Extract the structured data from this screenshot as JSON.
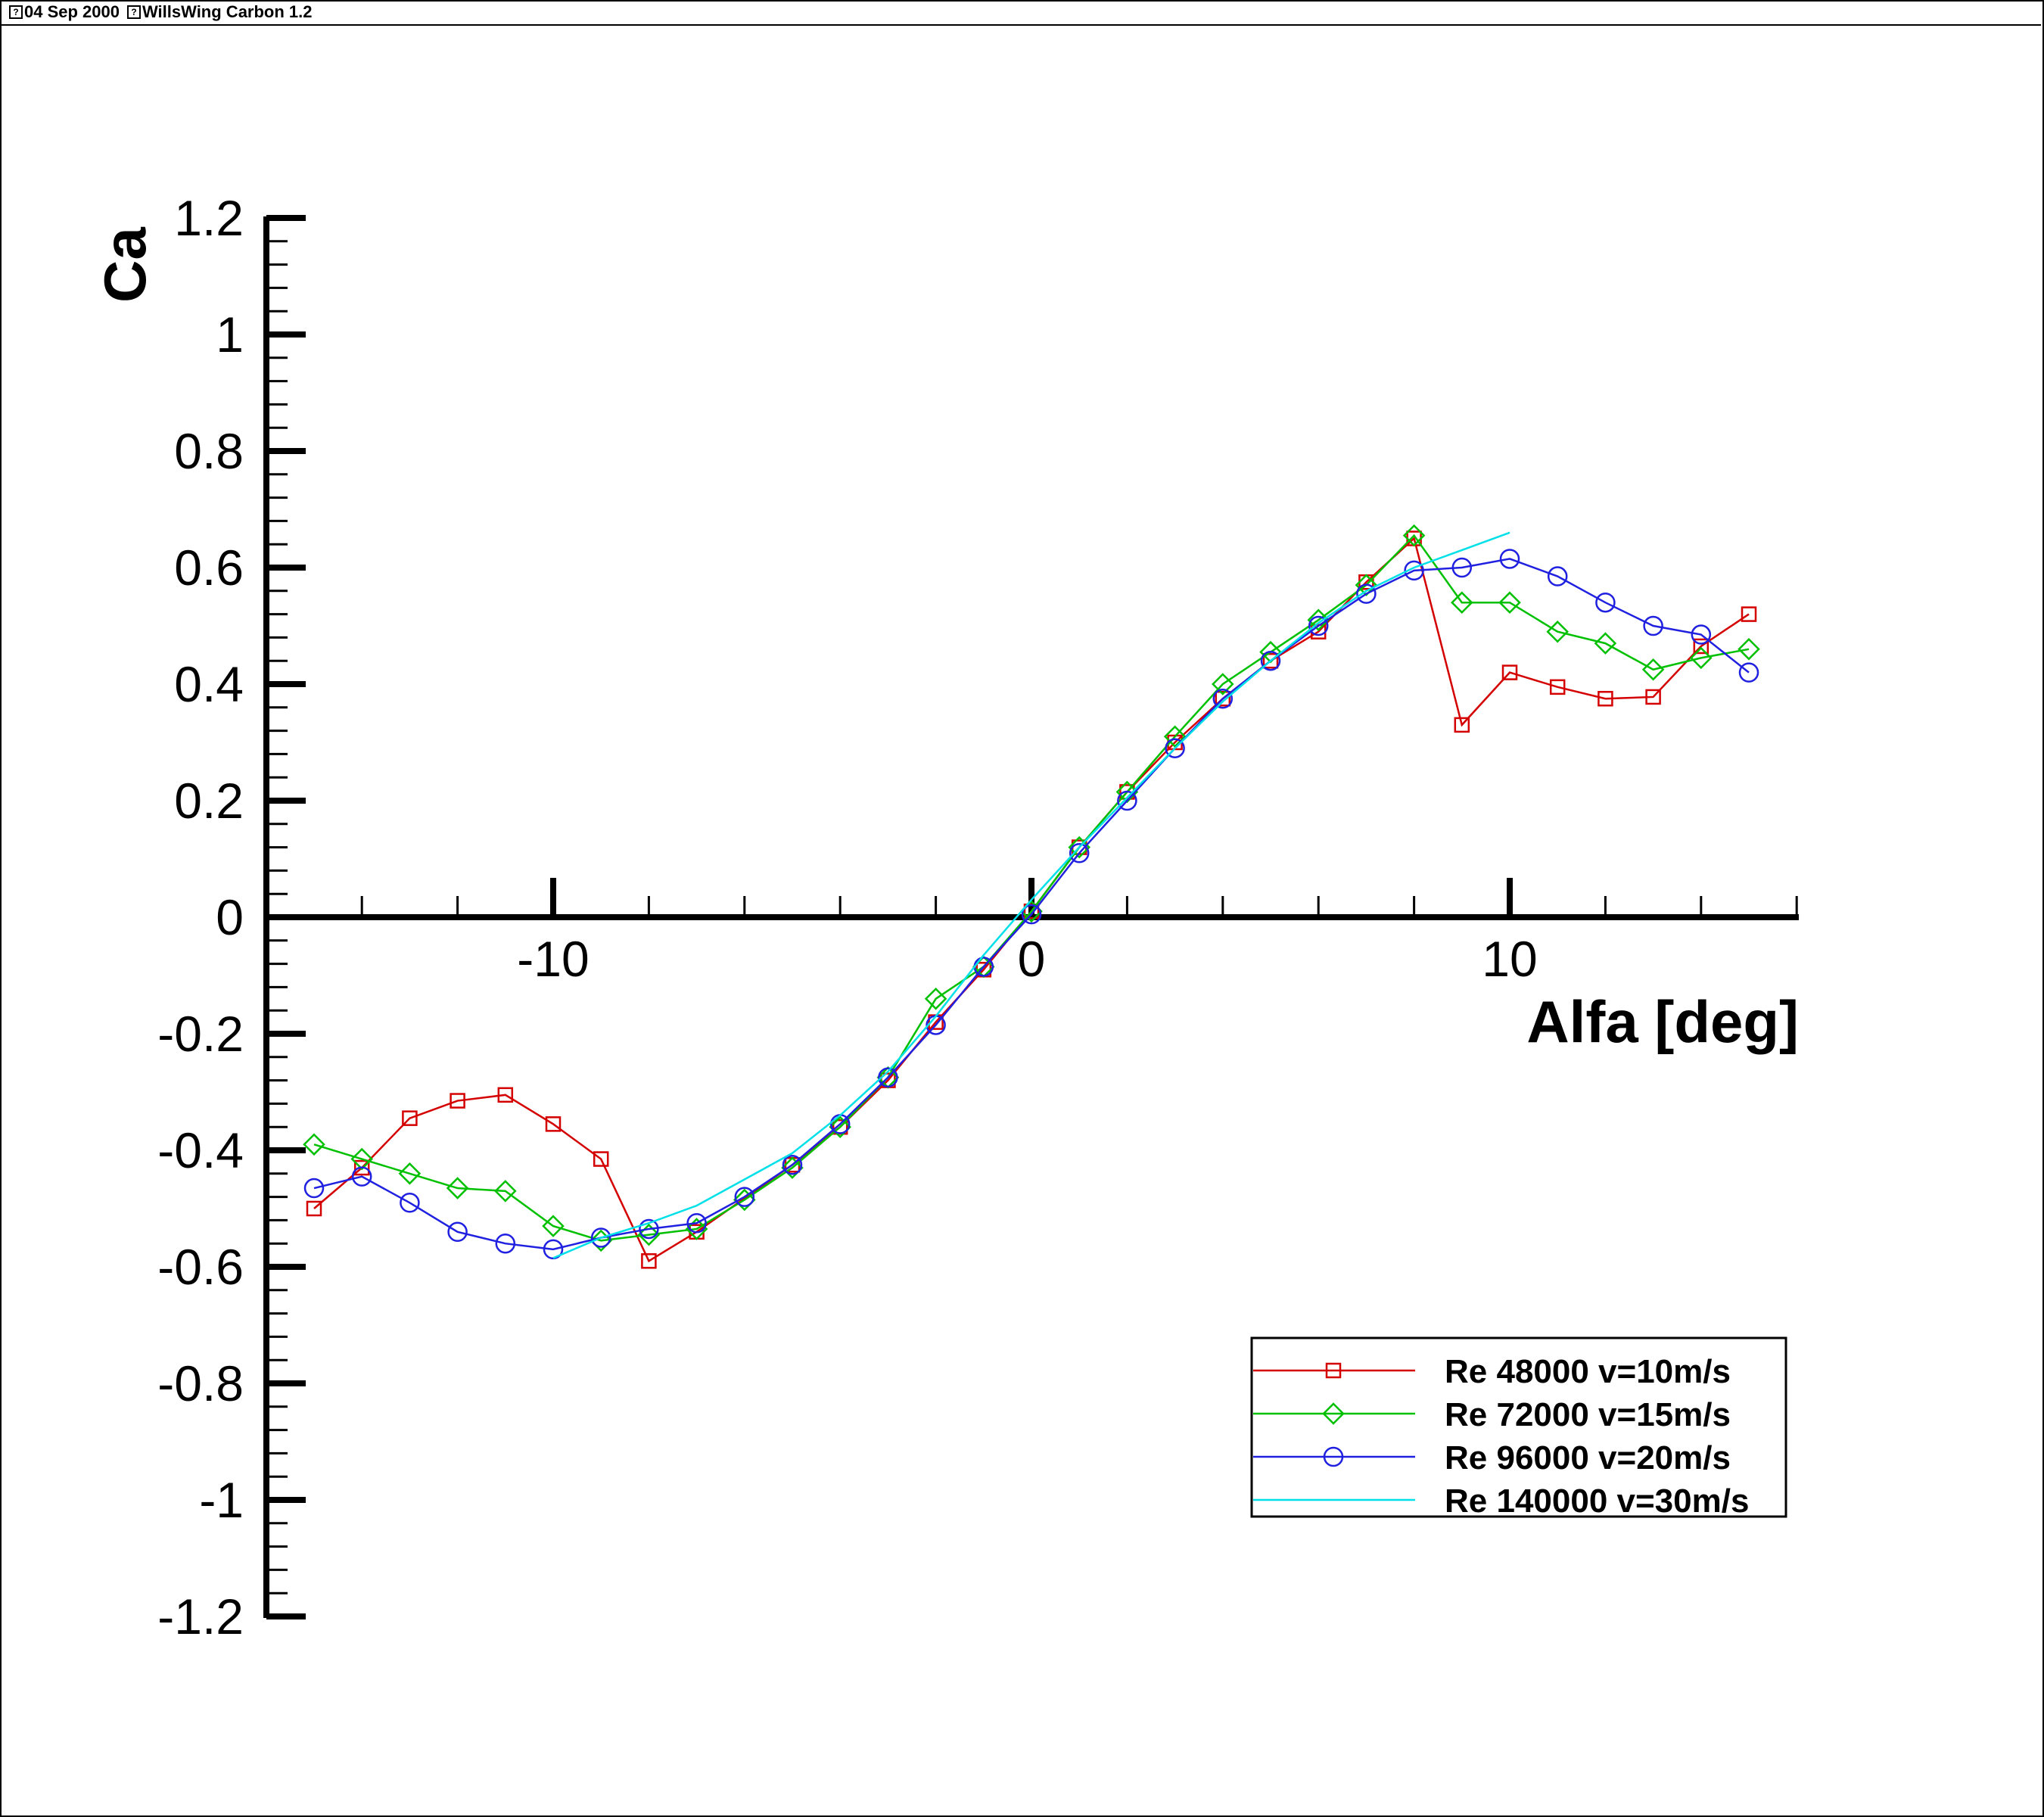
{
  "header": {
    "date": "04 Sep 2000",
    "title": "WillsWing Carbon 1.2"
  },
  "chart_data": {
    "type": "line",
    "title": "",
    "xlabel": "Alfa [deg]",
    "ylabel": "Ca",
    "xlim": [
      -15.5,
      16
    ],
    "ylim": [
      -1.2,
      1.2
    ],
    "x_ticks": [
      -10,
      0,
      10
    ],
    "y_ticks": [
      -1.2,
      -1,
      -0.8,
      -0.6,
      -0.4,
      -0.2,
      0,
      0.2,
      0.4,
      0.6,
      0.8,
      1,
      1.2
    ],
    "legend_position": "bottom-right",
    "series": [
      {
        "name": "Re 48000 v=10m/s",
        "color": "#d40000",
        "marker": "square",
        "x": [
          -15,
          -14,
          -13,
          -12,
          -11,
          -10,
          -9,
          -8,
          -7,
          -5,
          -4,
          -3,
          -2,
          -1,
          0,
          1,
          2,
          3,
          4,
          5,
          6,
          7,
          8,
          9,
          10,
          11,
          12,
          13,
          14,
          15
        ],
        "y": [
          -0.5,
          -0.43,
          -0.345,
          -0.315,
          -0.305,
          -0.355,
          -0.415,
          -0.59,
          -0.54,
          -0.425,
          -0.36,
          -0.28,
          -0.18,
          -0.09,
          0.01,
          0.12,
          0.215,
          0.3,
          0.375,
          0.44,
          0.49,
          0.575,
          0.65,
          0.33,
          0.42,
          0.395,
          0.375,
          0.378,
          0.465,
          0.52
        ]
      },
      {
        "name": "Re 72000 v=15m/s",
        "color": "#00c000",
        "marker": "diamond",
        "x": [
          -15,
          -14,
          -13,
          -12,
          -11,
          -10,
          -9,
          -8,
          -7,
          -6,
          -5,
          -4,
          -3,
          -2,
          -1,
          0,
          1,
          2,
          3,
          4,
          5,
          6,
          7,
          8,
          9,
          10,
          11,
          12,
          13,
          14,
          15
        ],
        "y": [
          -0.39,
          -0.415,
          -0.44,
          -0.465,
          -0.47,
          -0.53,
          -0.555,
          -0.545,
          -0.535,
          -0.485,
          -0.43,
          -0.36,
          -0.275,
          -0.14,
          -0.085,
          0.01,
          0.12,
          0.215,
          0.31,
          0.4,
          0.455,
          0.51,
          0.57,
          0.655,
          0.54,
          0.54,
          0.49,
          0.47,
          0.425,
          0.445,
          0.46
        ]
      },
      {
        "name": "Re 96000 v=20m/s",
        "color": "#2020e0",
        "marker": "circle",
        "x": [
          -15,
          -14,
          -13,
          -12,
          -11,
          -10,
          -9,
          -8,
          -7,
          -6,
          -5,
          -4,
          -3,
          -2,
          -1,
          0,
          1,
          2,
          3,
          4,
          5,
          6,
          7,
          8,
          9,
          10,
          11,
          12,
          13,
          14,
          15
        ],
        "y": [
          -0.465,
          -0.445,
          -0.49,
          -0.54,
          -0.56,
          -0.57,
          -0.55,
          -0.535,
          -0.525,
          -0.48,
          -0.425,
          -0.355,
          -0.275,
          -0.185,
          -0.085,
          0.005,
          0.11,
          0.2,
          0.29,
          0.375,
          0.44,
          0.5,
          0.555,
          0.595,
          0.6,
          0.615,
          0.585,
          0.54,
          0.5,
          0.485,
          0.42
        ]
      },
      {
        "name": "Re 140000 v=30m/s",
        "color": "#00e0e8",
        "marker": "none",
        "x": [
          -10,
          -9,
          -8,
          -7,
          -6,
          -5,
          -4,
          -3,
          -2,
          -1,
          0,
          1,
          2,
          3,
          4,
          5,
          6,
          7,
          8,
          9,
          10
        ],
        "y": [
          -0.585,
          -0.55,
          -0.525,
          -0.495,
          -0.45,
          -0.405,
          -0.34,
          -0.265,
          -0.17,
          -0.065,
          0.03,
          0.12,
          0.205,
          0.29,
          0.37,
          0.44,
          0.505,
          0.56,
          0.6,
          0.63,
          0.66
        ]
      }
    ]
  }
}
